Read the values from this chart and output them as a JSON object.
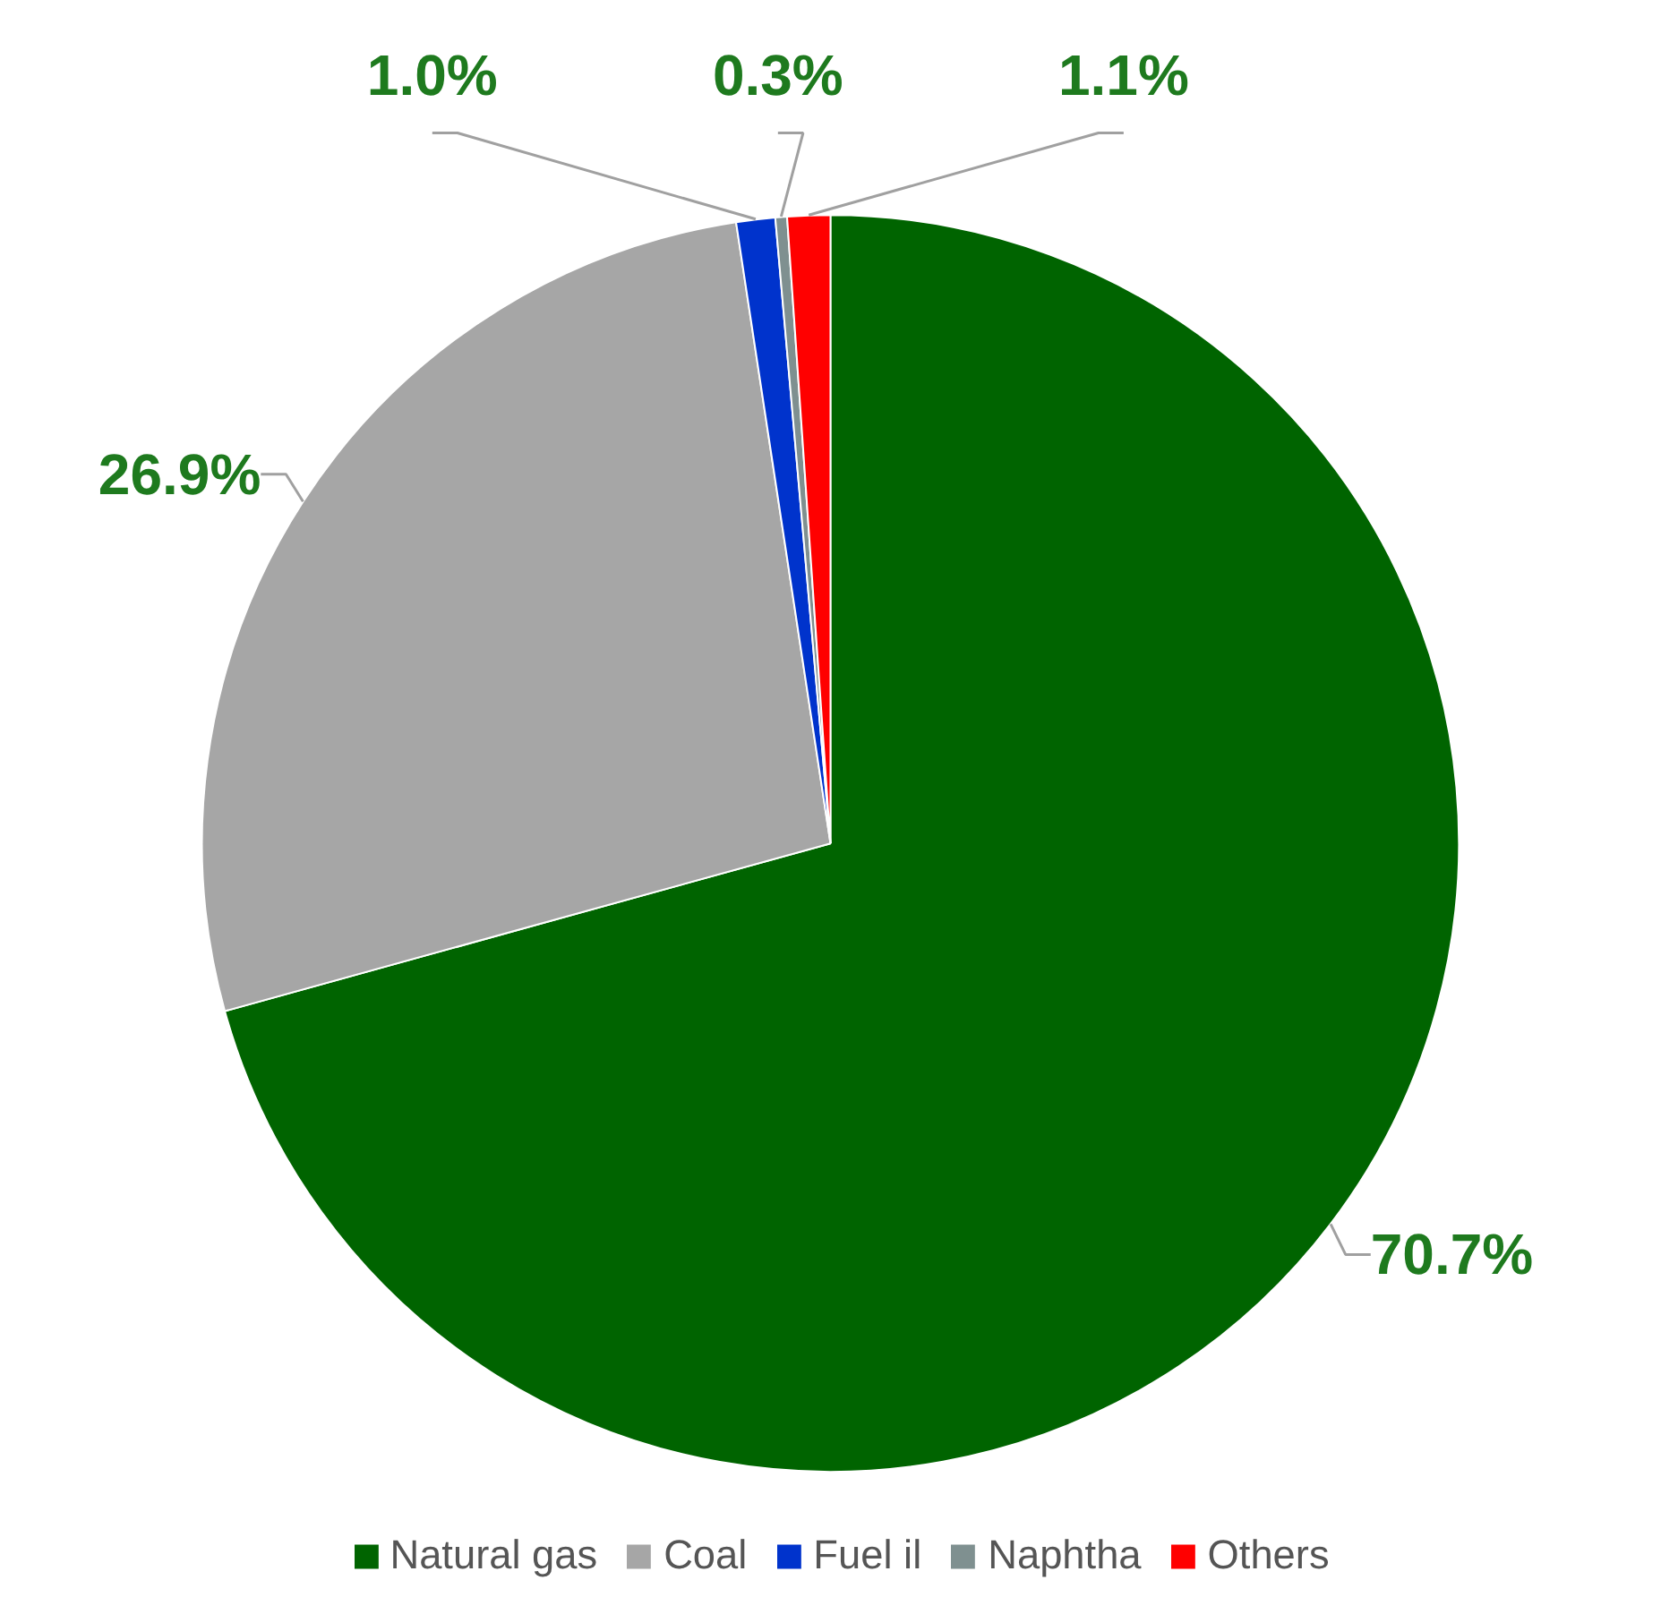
{
  "chart_data": {
    "type": "pie",
    "categories": [
      "Natural gas",
      "Coal",
      "Fuel il",
      "Naphtha",
      "Others"
    ],
    "values": [
      70.7,
      26.9,
      1.0,
      0.3,
      1.1
    ],
    "colors": [
      "#006400",
      "#a6a6a6",
      "#0033cc",
      "#7f9090",
      "#ff0000"
    ],
    "value_labels": [
      "70.7%",
      "26.9%",
      "1.0%",
      "0.3%",
      "1.1%"
    ],
    "legend": "bottom"
  }
}
